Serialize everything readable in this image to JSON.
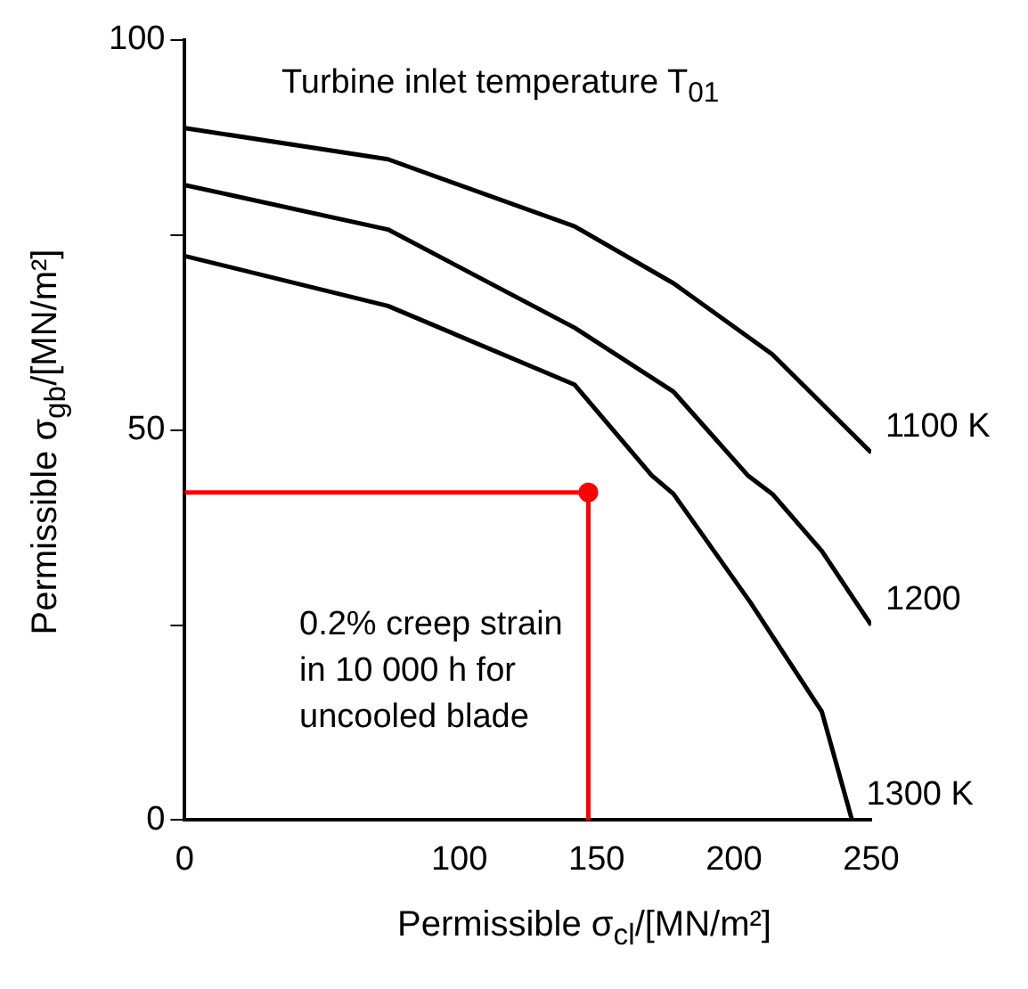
{
  "chart_data": {
    "type": "line",
    "xlabel": "Permissible σ$_{cl}$/[MN/m²]",
    "ylabel": "Permissible σ$_{gb}$/[MN/m²]",
    "annotations": [
      "Turbine inlet temperature T$_{01}$",
      "0.2% creep strain in 10 000 h for uncooled blade"
    ],
    "xlim": [
      0,
      250
    ],
    "xticks": [
      0,
      100,
      150,
      200,
      250
    ],
    "ylim": [
      0,
      100
    ],
    "yticks": [
      0,
      {
        "value": 25,
        "label": null
      },
      50,
      {
        "value": 75,
        "label": null
      },
      100
    ],
    "grid": false,
    "legend": false,
    "marker": "none",
    "line_style": "solid",
    "series": [
      {
        "name": "1100 K",
        "color": "#000000",
        "x": [
          0,
          74,
          142,
          178,
          214,
          250
        ],
        "values": [
          88.7,
          84.7,
          76.1,
          68.8,
          59.7,
          47.1
        ]
      },
      {
        "name": "1200",
        "color": "#000000",
        "x": [
          0,
          74,
          142,
          178,
          205,
          214,
          232,
          250
        ],
        "values": [
          81.4,
          75.7,
          63.1,
          54.9,
          44.2,
          41.8,
          34.5,
          25.0
        ]
      },
      {
        "name": "1300 K",
        "color": "#000000",
        "x": [
          0,
          74,
          142,
          170,
          178,
          206,
          232,
          243
        ],
        "values": [
          72.3,
          65.9,
          55.8,
          44.2,
          41.8,
          27.9,
          13.9,
          0
        ]
      },
      {
        "color": "#ff0000",
        "x": [
          0,
          147,
          147
        ],
        "values": [
          42,
          42,
          0
        ]
      },
      {
        "type": "scatter",
        "marker": "circle",
        "color": "#ff0000",
        "x": [
          147
        ],
        "values": [
          42
        ]
      }
    ]
  }
}
